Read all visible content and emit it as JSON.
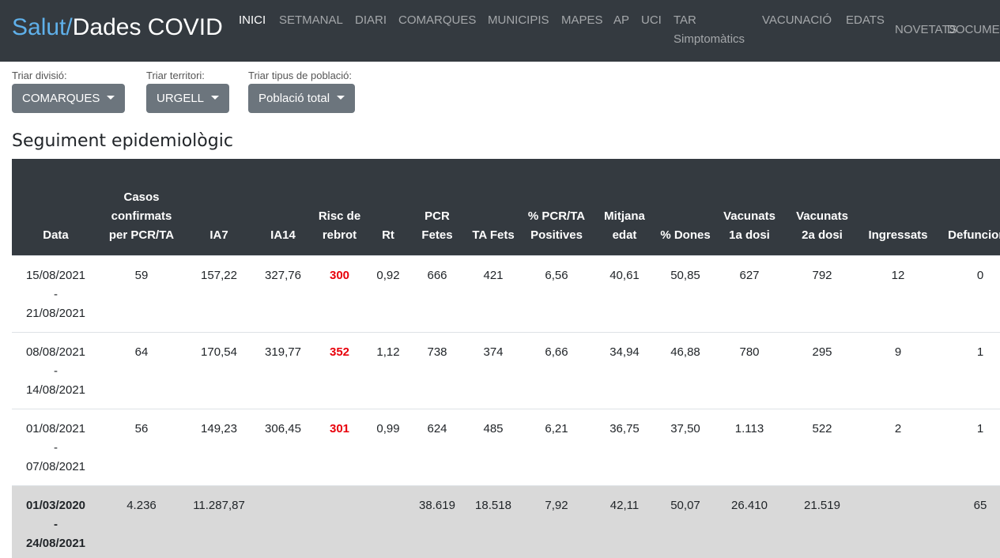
{
  "nav": {
    "brand_prefix": "Salut/",
    "brand": "Dades COVID",
    "items": [
      "INICI",
      "SETMANAL",
      "DIARI",
      "COMARQUES",
      "MUNICIPIS",
      "MAPES",
      "AP",
      "UCI",
      "TAR Simptomàtics",
      "VACUNACIÓ",
      "EDATS",
      "NOVETATS",
      "DOCUMENTACIÓ"
    ]
  },
  "filters": [
    {
      "label": "Triar divisió:",
      "value": "COMARQUES"
    },
    {
      "label": "Triar territori:",
      "value": "URGELL"
    },
    {
      "label": "Triar tipus de població:",
      "value": "Població total"
    }
  ],
  "section": {
    "title": "Seguiment epidemiològic"
  },
  "table": {
    "headers": [
      "Data",
      "Casos confirmats per PCR/TA",
      "IA7",
      "IA14",
      "Risc de rebrot",
      "Rt",
      "PCR Fetes",
      "TA Fets",
      "% PCR/TA Positives",
      "Mitjana edat",
      "% Dones",
      "Vacunats 1a dosi",
      "Vacunats 2a dosi",
      "Ingressats",
      "Defuncions"
    ],
    "rows": [
      [
        "15/08/2021 - 21/08/2021",
        "59",
        "157,22",
        "327,76",
        "300",
        "0,92",
        "666",
        "421",
        "6,56",
        "40,61",
        "50,85",
        "627",
        "792",
        "12",
        "0"
      ],
      [
        "08/08/2021 - 14/08/2021",
        "64",
        "170,54",
        "319,77",
        "352",
        "1,12",
        "738",
        "374",
        "6,66",
        "34,94",
        "46,88",
        "780",
        "295",
        "9",
        "1"
      ],
      [
        "01/08/2021 - 07/08/2021",
        "56",
        "149,23",
        "306,45",
        "301",
        "0,99",
        "624",
        "485",
        "6,21",
        "36,75",
        "37,50",
        "1.113",
        "522",
        "2",
        "1"
      ],
      [
        "01/03/2020 - 24/08/2021",
        "4.236",
        "11.287,87",
        null,
        null,
        null,
        "38.619",
        "18.518",
        "7,92",
        "42,11",
        "50,07",
        "26.410",
        "21.519",
        null,
        "65"
      ]
    ]
  }
}
